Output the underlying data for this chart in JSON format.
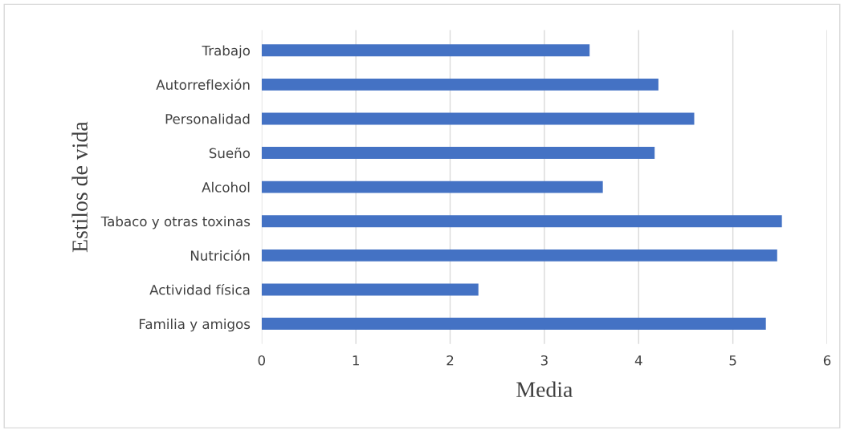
{
  "chart_data": {
    "type": "bar",
    "orientation": "horizontal",
    "xlabel": "Media",
    "ylabel": "Estilos de vida",
    "categories": [
      "Trabajo",
      "Autorreflexión",
      "Personalidad",
      "Sueño",
      "Alcohol",
      "Tabaco y otras toxinas",
      "Nutrición",
      "Actividad física",
      "Familia y amigos"
    ],
    "values": [
      3.48,
      4.21,
      4.59,
      4.17,
      3.62,
      5.52,
      5.47,
      2.3,
      5.35
    ],
    "color": "#4472c4",
    "xlim": [
      0,
      6
    ],
    "xticks": [
      0,
      1,
      2,
      3,
      4,
      5,
      6
    ],
    "grid": "x",
    "legend": false
  }
}
